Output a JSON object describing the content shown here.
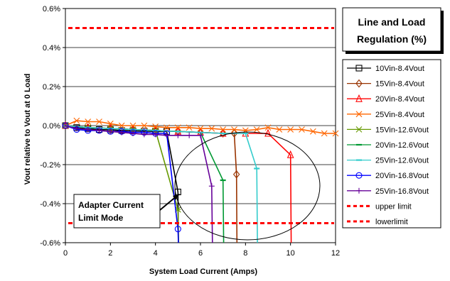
{
  "chart_data": {
    "type": "line",
    "title": "Line and Load Regulation (%)",
    "title_lines": [
      "Line and Load",
      "Regulation (%)"
    ],
    "xlabel": "System Load Current (Amps)",
    "ylabel": "Vout relative to Vout at 0 Load",
    "xlim": [
      0,
      12
    ],
    "ylim": [
      -0.6,
      0.6
    ],
    "x_ticks": [
      "0",
      "2",
      "4",
      "6",
      "8",
      "10",
      "12"
    ],
    "y_ticks": [
      "0.6%",
      "0.4%",
      "0.2%",
      "0.0%",
      "-0.2%",
      "-0.4%",
      "-0.6%"
    ],
    "grid": "horizontal",
    "legend_position": "right",
    "annotation": {
      "lines": [
        "Adapter Current",
        "Limit Mode"
      ]
    },
    "series": [
      {
        "name": "10Vin-8.4Vout",
        "color": "#000000",
        "marker": "square",
        "x": [
          0,
          0.5,
          1,
          1.5,
          2,
          2.5,
          3,
          3.5,
          4,
          4.5,
          5,
          5.02
        ],
        "y": [
          0,
          -0.01,
          -0.015,
          -0.02,
          -0.022,
          -0.025,
          -0.027,
          -0.028,
          -0.03,
          -0.03,
          -0.34,
          -0.6
        ]
      },
      {
        "name": "15Vin-8.4Vout",
        "color": "#993300",
        "marker": "diamond",
        "x": [
          0,
          1,
          2,
          3,
          4,
          5,
          6,
          7,
          7.5,
          7.6,
          7.62
        ],
        "y": [
          0,
          -0.01,
          -0.015,
          -0.02,
          -0.025,
          -0.03,
          -0.035,
          -0.04,
          -0.04,
          -0.25,
          -0.6
        ]
      },
      {
        "name": "20Vin-8.4Vout",
        "color": "#ff0000",
        "marker": "triangle",
        "x": [
          0,
          1,
          2,
          3,
          4,
          5,
          6,
          7,
          8,
          9,
          10,
          10.03
        ],
        "y": [
          0,
          -0.01,
          -0.015,
          -0.02,
          -0.025,
          -0.03,
          -0.035,
          -0.04,
          -0.04,
          -0.04,
          -0.15,
          -0.6
        ]
      },
      {
        "name": "25Vin-8.4Vout",
        "color": "#ff6600",
        "marker": "x",
        "x": [
          0,
          0.5,
          1,
          1.5,
          2,
          2.5,
          3,
          3.5,
          4,
          4.5,
          5,
          5.5,
          6,
          6.5,
          7,
          7.5,
          8,
          8.5,
          9,
          9.5,
          10,
          10.5,
          11,
          11.5,
          12
        ],
        "y": [
          0,
          0.025,
          0.02,
          0.02,
          0.01,
          0.0,
          0.0,
          0.0,
          -0.005,
          -0.01,
          -0.01,
          -0.01,
          -0.015,
          -0.015,
          -0.02,
          -0.02,
          -0.025,
          -0.02,
          -0.01,
          -0.02,
          -0.02,
          -0.02,
          -0.03,
          -0.04,
          -0.04
        ]
      },
      {
        "name": "15Vin-12.6Vout",
        "color": "#669900",
        "marker": "star",
        "x": [
          0,
          1,
          2,
          3,
          4,
          5,
          5.03
        ],
        "y": [
          0,
          -0.01,
          -0.015,
          -0.02,
          -0.025,
          -0.43,
          -0.6
        ]
      },
      {
        "name": "20Vin-12.6Vout",
        "color": "#009933",
        "marker": "dash",
        "x": [
          0,
          1,
          2,
          3,
          4,
          5,
          6,
          7,
          7.03
        ],
        "y": [
          0,
          -0.01,
          -0.015,
          -0.02,
          -0.025,
          -0.03,
          -0.035,
          -0.28,
          -0.6
        ]
      },
      {
        "name": "25Vin-12.6Vout",
        "color": "#33cccc",
        "marker": "dash",
        "x": [
          0,
          1,
          2,
          3,
          4,
          5,
          6,
          7,
          8,
          8.5,
          8.53
        ],
        "y": [
          0,
          -0.01,
          -0.015,
          -0.02,
          -0.025,
          -0.03,
          -0.035,
          -0.04,
          -0.04,
          -0.22,
          -0.6
        ]
      },
      {
        "name": "20Vin-16.8Vout",
        "color": "#0000ff",
        "marker": "circle",
        "x": [
          0,
          0.5,
          1,
          1.5,
          2,
          2.5,
          3,
          3.5,
          4,
          4.5,
          5,
          5.02
        ],
        "y": [
          0,
          -0.02,
          -0.025,
          -0.025,
          -0.03,
          -0.03,
          -0.035,
          -0.035,
          -0.04,
          -0.04,
          -0.53,
          -0.6
        ]
      },
      {
        "name": "25Vin-16.8Vout",
        "color": "#660099",
        "marker": "plus",
        "x": [
          0,
          0.5,
          1,
          1.5,
          2,
          2.5,
          3,
          3.5,
          4,
          4.5,
          5,
          5.5,
          6,
          6.5,
          6.53
        ],
        "y": [
          0,
          -0.015,
          -0.02,
          -0.025,
          -0.03,
          -0.035,
          -0.04,
          -0.045,
          -0.045,
          -0.05,
          -0.05,
          -0.05,
          -0.05,
          -0.31,
          -0.6
        ]
      },
      {
        "name": "upper limit",
        "color": "#ff0000",
        "marker": "none",
        "dashed": true,
        "x": [
          0,
          12
        ],
        "y": [
          0.5,
          0.5
        ]
      },
      {
        "name": "lowerlimit",
        "color": "#ff0000",
        "marker": "none",
        "dashed": true,
        "x": [
          0,
          12
        ],
        "y": [
          -0.5,
          -0.5
        ]
      }
    ]
  }
}
